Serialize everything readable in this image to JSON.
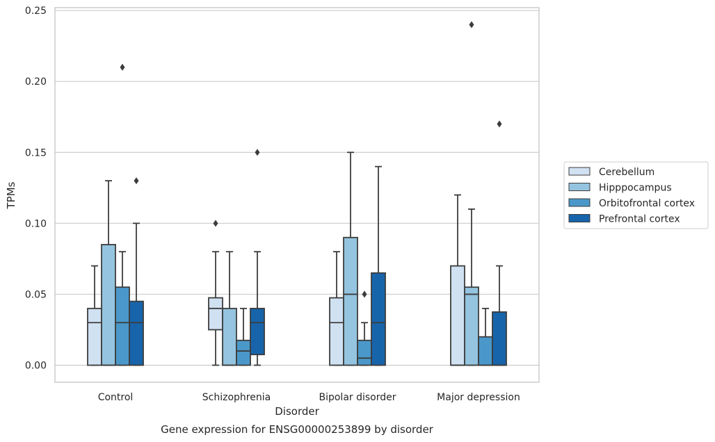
{
  "chart_data": {
    "type": "boxplot",
    "caption": "Gene expression for ENSG00000253899 by disorder",
    "xlabel": "Disorder",
    "ylabel": "TPMs",
    "ylim": [
      -0.012,
      0.252
    ],
    "yticks": [
      0.0,
      0.05,
      0.1,
      0.15,
      0.2,
      0.25
    ],
    "ytick_labels": [
      "0.00",
      "0.05",
      "0.10",
      "0.15",
      "0.20",
      "0.25"
    ],
    "grid": true,
    "legend_position": "right",
    "categories": [
      "Control",
      "Schizophrenia",
      "Bipolar disorder",
      "Major depression"
    ],
    "series": [
      {
        "name": "Cerebellum",
        "color": "#d0e1f2",
        "boxes": [
          {
            "whisker_low": 0.0,
            "q1": 0.0,
            "median": 0.03,
            "q3": 0.04,
            "whisker_high": 0.07,
            "outliers": []
          },
          {
            "whisker_low": 0.0,
            "q1": 0.025,
            "median": 0.04,
            "q3": 0.0475,
            "whisker_high": 0.08,
            "outliers": [
              0.1
            ]
          },
          {
            "whisker_low": 0.0,
            "q1": 0.0,
            "median": 0.03,
            "q3": 0.0475,
            "whisker_high": 0.08,
            "outliers": []
          },
          {
            "whisker_low": 0.0,
            "q1": 0.0,
            "median": 0.0,
            "q3": 0.07,
            "whisker_high": 0.12,
            "outliers": []
          }
        ]
      },
      {
        "name": "Hipppocampus",
        "color": "#94c4df",
        "boxes": [
          {
            "whisker_low": 0.0,
            "q1": 0.0,
            "median": 0.0,
            "q3": 0.085,
            "whisker_high": 0.13,
            "outliers": []
          },
          {
            "whisker_low": 0.0,
            "q1": 0.0,
            "median": 0.0,
            "q3": 0.04,
            "whisker_high": 0.08,
            "outliers": []
          },
          {
            "whisker_low": 0.0,
            "q1": 0.0,
            "median": 0.05,
            "q3": 0.09,
            "whisker_high": 0.15,
            "outliers": []
          },
          {
            "whisker_low": 0.0,
            "q1": 0.0,
            "median": 0.05,
            "q3": 0.055,
            "whisker_high": 0.11,
            "outliers": [
              0.24
            ]
          }
        ]
      },
      {
        "name": "Orbitofrontal cortex",
        "color": "#4a98c9",
        "boxes": [
          {
            "whisker_low": 0.0,
            "q1": 0.0,
            "median": 0.03,
            "q3": 0.055,
            "whisker_high": 0.08,
            "outliers": [
              0.21
            ]
          },
          {
            "whisker_low": 0.0,
            "q1": 0.0,
            "median": 0.01,
            "q3": 0.0175,
            "whisker_high": 0.04,
            "outliers": []
          },
          {
            "whisker_low": 0.0,
            "q1": 0.0,
            "median": 0.005,
            "q3": 0.0175,
            "whisker_high": 0.03,
            "outliers": [
              0.05
            ]
          },
          {
            "whisker_low": 0.0,
            "q1": 0.0,
            "median": 0.0,
            "q3": 0.02,
            "whisker_high": 0.04,
            "outliers": []
          }
        ]
      },
      {
        "name": "Prefrontal cortex",
        "color": "#1764ab",
        "boxes": [
          {
            "whisker_low": 0.0,
            "q1": 0.0,
            "median": 0.03,
            "q3": 0.045,
            "whisker_high": 0.1,
            "outliers": [
              0.13
            ]
          },
          {
            "whisker_low": 0.0,
            "q1": 0.0075,
            "median": 0.03,
            "q3": 0.04,
            "whisker_high": 0.08,
            "outliers": [
              0.15
            ]
          },
          {
            "whisker_low": 0.0,
            "q1": 0.0,
            "median": 0.03,
            "q3": 0.065,
            "whisker_high": 0.14,
            "outliers": []
          },
          {
            "whisker_low": 0.0,
            "q1": 0.0,
            "median": 0.0,
            "q3": 0.0375,
            "whisker_high": 0.07,
            "outliers": [
              0.17
            ]
          }
        ]
      }
    ]
  }
}
